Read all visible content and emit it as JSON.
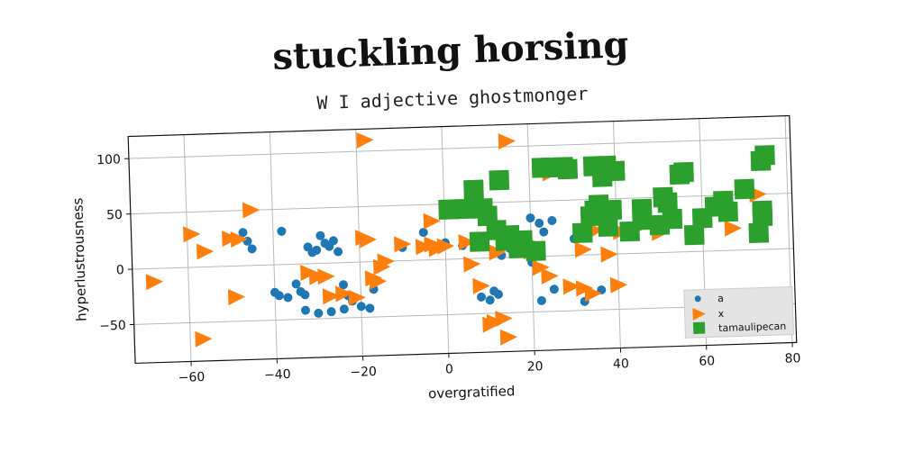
{
  "chart_data": {
    "type": "scatter",
    "title": "stuckling horsing",
    "subtitle": "W I adjective ghostmonger",
    "xlabel": "overgratified",
    "ylabel": "hyperlustrousness",
    "xlim": [
      -73,
      81
    ],
    "ylim": [
      -85,
      120
    ],
    "xticks": [
      -60,
      -40,
      -20,
      0,
      20,
      40,
      60,
      80
    ],
    "yticks": [
      -50,
      0,
      50,
      100
    ],
    "grid": true,
    "legend_position": "lower-right",
    "series": [
      {
        "name": "a",
        "marker": "circle",
        "color": "#1f77b4",
        "points": [
          [
            -47,
            30
          ],
          [
            -46,
            22
          ],
          [
            -45,
            15
          ],
          [
            -40,
            -25
          ],
          [
            -39,
            -28
          ],
          [
            -37,
            -30
          ],
          [
            -38,
            30
          ],
          [
            -35,
            -18
          ],
          [
            -34,
            -25
          ],
          [
            -33,
            -28
          ],
          [
            -32,
            15
          ],
          [
            -31,
            10
          ],
          [
            -30,
            12
          ],
          [
            -29,
            25
          ],
          [
            -28,
            18
          ],
          [
            -27,
            15
          ],
          [
            -26,
            20
          ],
          [
            -25,
            10
          ],
          [
            -24,
            -20
          ],
          [
            -23,
            -30
          ],
          [
            -22,
            -35
          ],
          [
            -30,
            -45
          ],
          [
            -33,
            -42
          ],
          [
            -27,
            -44
          ],
          [
            -24,
            -42
          ],
          [
            -20,
            -40
          ],
          [
            -18,
            -42
          ],
          [
            -17,
            -25
          ],
          [
            -10,
            12
          ],
          [
            -5,
            25
          ],
          [
            0,
            15
          ],
          [
            4,
            12
          ],
          [
            8,
            -35
          ],
          [
            10,
            -38
          ],
          [
            11,
            -30
          ],
          [
            12,
            -33
          ],
          [
            13,
            2
          ],
          [
            15,
            8
          ],
          [
            16,
            5
          ],
          [
            20,
            35
          ],
          [
            22,
            30
          ],
          [
            23,
            22
          ],
          [
            25,
            32
          ],
          [
            25,
            -30
          ],
          [
            22,
            -40
          ],
          [
            30,
            15
          ],
          [
            32,
            -42
          ],
          [
            33,
            18
          ],
          [
            36,
            -32
          ],
          [
            20,
            -5
          ]
        ]
      },
      {
        "name": "x",
        "marker": "triangle-right",
        "color": "#ff7f0e",
        "points": [
          [
            -68,
            -12
          ],
          [
            -59,
            30
          ],
          [
            -57,
            -65
          ],
          [
            -56,
            14
          ],
          [
            -50,
            25
          ],
          [
            -49,
            -28
          ],
          [
            -48,
            24
          ],
          [
            -45,
            50
          ],
          [
            -32,
            -8
          ],
          [
            -30,
            -12
          ],
          [
            -28,
            -12
          ],
          [
            -27,
            -30
          ],
          [
            -24,
            -28
          ],
          [
            -21,
            -32
          ],
          [
            -19,
            22
          ],
          [
            -18,
            20
          ],
          [
            -18,
            110
          ],
          [
            -17,
            -15
          ],
          [
            -15,
            -5
          ],
          [
            -14,
            0
          ],
          [
            -10,
            15
          ],
          [
            -5,
            12
          ],
          [
            -3,
            14
          ],
          [
            -3,
            35
          ],
          [
            -2,
            10
          ],
          [
            0,
            12
          ],
          [
            5,
            15
          ],
          [
            6,
            -5
          ],
          [
            8,
            -25
          ],
          [
            10,
            -60
          ],
          [
            11,
            -58
          ],
          [
            12,
            5
          ],
          [
            13,
            -55
          ],
          [
            14,
            -72
          ],
          [
            15,
            105
          ],
          [
            20,
            5
          ],
          [
            21,
            10
          ],
          [
            22,
            -10
          ],
          [
            24,
            -18
          ],
          [
            25,
            75
          ],
          [
            29,
            -28
          ],
          [
            32,
            -30
          ],
          [
            32,
            5
          ],
          [
            33,
            18
          ],
          [
            35,
            22
          ],
          [
            40,
            -28
          ],
          [
            41,
            20
          ],
          [
            46,
            25
          ],
          [
            50,
            18
          ],
          [
            67,
            20
          ],
          [
            73,
            50
          ],
          [
            -16,
            -18
          ],
          [
            34,
            -35
          ],
          [
            38,
            0
          ]
        ]
      },
      {
        "name": "tamaulipecan",
        "marker": "square",
        "color": "#2ca02c",
        "points": [
          [
            1,
            45
          ],
          [
            5,
            45
          ],
          [
            7,
            62
          ],
          [
            8,
            15
          ],
          [
            9,
            45
          ],
          [
            10,
            38
          ],
          [
            12,
            25
          ],
          [
            13,
            70
          ],
          [
            14,
            15
          ],
          [
            15,
            20
          ],
          [
            17,
            8
          ],
          [
            18,
            15
          ],
          [
            21,
            5
          ],
          [
            23,
            80
          ],
          [
            25,
            80
          ],
          [
            28,
            80
          ],
          [
            29,
            78
          ],
          [
            32,
            20
          ],
          [
            34,
            35
          ],
          [
            35,
            80
          ],
          [
            35,
            40
          ],
          [
            36,
            45
          ],
          [
            37,
            70
          ],
          [
            38,
            80
          ],
          [
            38,
            25
          ],
          [
            39,
            40
          ],
          [
            40,
            75
          ],
          [
            43,
            20
          ],
          [
            46,
            30
          ],
          [
            46,
            40
          ],
          [
            50,
            25
          ],
          [
            51,
            50
          ],
          [
            52,
            45
          ],
          [
            53,
            30
          ],
          [
            55,
            70
          ],
          [
            56,
            72
          ],
          [
            58,
            15
          ],
          [
            60,
            30
          ],
          [
            63,
            40
          ],
          [
            65,
            45
          ],
          [
            66,
            35
          ],
          [
            70,
            55
          ],
          [
            73,
            15
          ],
          [
            74,
            30
          ],
          [
            74,
            35
          ],
          [
            74,
            80
          ],
          [
            75,
            85
          ]
        ]
      }
    ]
  }
}
